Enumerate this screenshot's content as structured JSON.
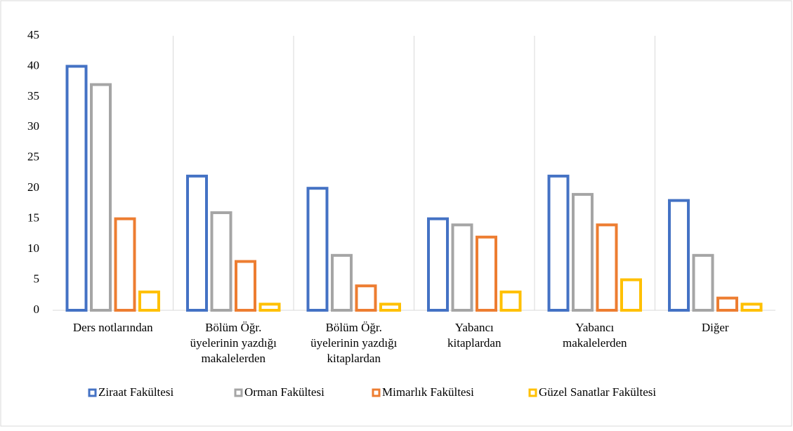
{
  "chart_data": {
    "type": "bar",
    "categories": [
      "Ders notlarından",
      "Bölüm Öğr. üyelerinin yazdığı makalelerden",
      "Bölüm Öğr. üyelerinin yazdığı kitaplardan",
      "Yabancı kitaplardan",
      "Yabancı makalelerden",
      "Diğer"
    ],
    "series": [
      {
        "name": "Ziraat Fakültesi",
        "color": "#4472c4",
        "values": [
          40,
          22,
          20,
          15,
          22,
          18
        ]
      },
      {
        "name": "Orman Fakültesi",
        "color": "#a5a5a5",
        "values": [
          37,
          16,
          9,
          14,
          19,
          9
        ]
      },
      {
        "name": "Mimarlık Fakültesi",
        "color": "#ed7d31",
        "values": [
          15,
          8,
          4,
          12,
          14,
          2
        ]
      },
      {
        "name": "Güzel Sanatlar Fakültesi",
        "color": "#ffc000",
        "values": [
          3,
          1,
          1,
          3,
          5,
          1
        ]
      }
    ],
    "ylim": [
      0,
      45
    ],
    "yticks": [
      0,
      5,
      10,
      15,
      20,
      25,
      30,
      35,
      40,
      45
    ],
    "legend": "bottom"
  }
}
